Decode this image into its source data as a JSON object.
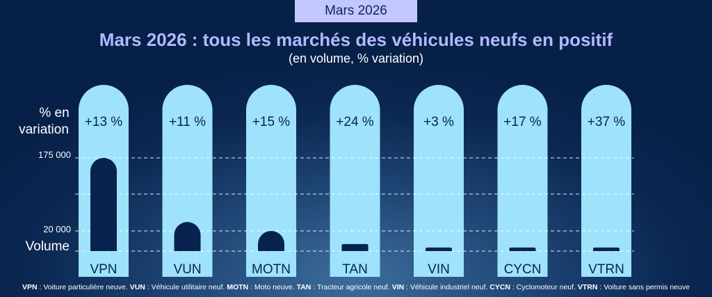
{
  "badge": "Mars 2026",
  "title": "Mars 2026 : tous les marchés des véhicules neufs en positif",
  "subtitle": "(en volume, % variation)",
  "labels": {
    "variation_line1": "% en",
    "variation_line2": "variation",
    "tick_175000": "175 000",
    "tick_20000": "20 000",
    "volume": "Volume"
  },
  "chart_data": {
    "type": "bar",
    "categories": [
      "VPN",
      "VUN",
      "MOTN",
      "TAN",
      "VIN",
      "CYCN",
      "VTRN"
    ],
    "variation_labels": [
      "+13 %",
      "+11 %",
      "+15 %",
      "+24 %",
      "+3 %",
      "+17 %",
      "+37 %"
    ],
    "series": [
      {
        "values": [
          175000,
          39000,
          20000,
          7000,
          3500,
          3500,
          3500
        ]
      }
    ],
    "yticks": [
      20000,
      175000
    ],
    "grid": true,
    "colors": {
      "capsule": "#9ee2fb",
      "bar": "#082350",
      "grid": "#ffffff"
    }
  },
  "footer": [
    {
      "abbr": "VPN",
      "text": " : Voiture particulière neuve. "
    },
    {
      "abbr": "VUN",
      "text": " : Véhicule utilitaire neuf. "
    },
    {
      "abbr": "MOTN",
      "text": " : Moto neuve. "
    },
    {
      "abbr": "TAN",
      "text": " : Tracteur agricole neuf. "
    },
    {
      "abbr": "VIN",
      "text": " : Véhicule industriel neuf. "
    },
    {
      "abbr": "CYCN",
      "text": " : Cyclomoteur neuf. "
    },
    {
      "abbr": "VTRN",
      "text": " : Voiture sans permis neuve"
    }
  ]
}
